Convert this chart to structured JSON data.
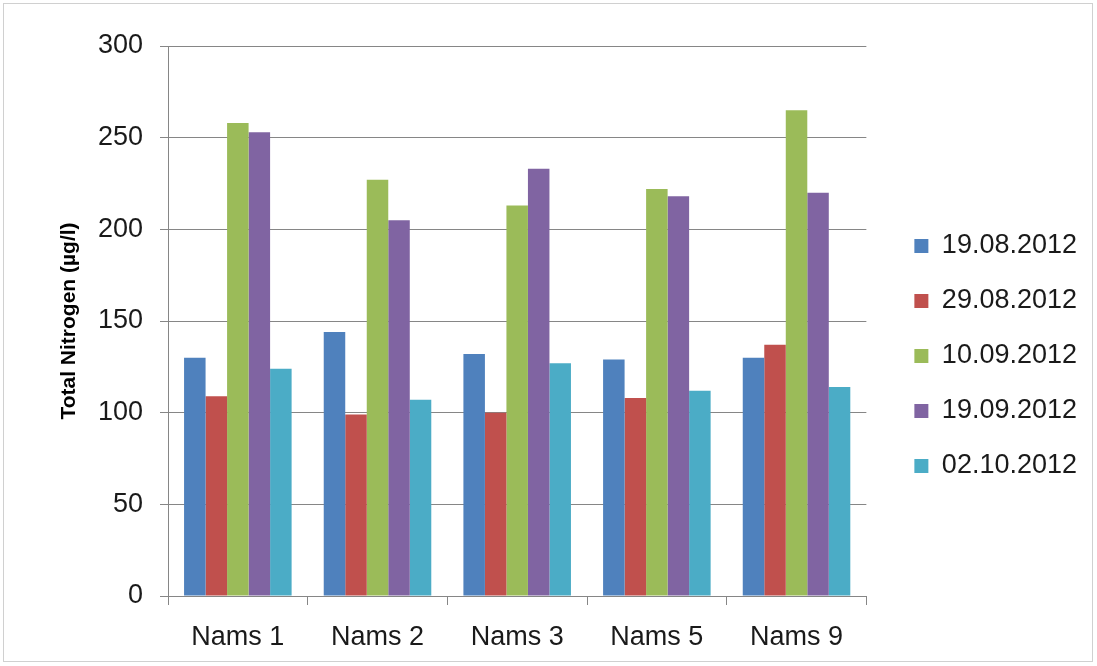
{
  "chart_data": {
    "type": "bar",
    "ylabel": "Total Nitrogen (µg/l)",
    "categories": [
      "Nams 1",
      "Nams 2",
      "Nams 3",
      "Nams 5",
      "Nams 9"
    ],
    "series": [
      {
        "name": "19.08.2012",
        "color": "#4f81bd",
        "values": [
          130,
          144,
          132,
          129,
          130
        ]
      },
      {
        "name": "29.08.2012",
        "color": "#c0504d",
        "values": [
          109,
          99,
          100,
          108,
          137
        ]
      },
      {
        "name": "10.09.2012",
        "color": "#9bbb59",
        "values": [
          258,
          227,
          213,
          222,
          265
        ]
      },
      {
        "name": "19.09.2012",
        "color": "#8064a2",
        "values": [
          253,
          205,
          233,
          218,
          220
        ]
      },
      {
        "name": "02.10.2012",
        "color": "#4bacc6",
        "values": [
          124,
          107,
          127,
          112,
          114
        ]
      }
    ],
    "ylim": [
      0,
      300
    ],
    "yticks": [
      0,
      50,
      100,
      150,
      200,
      250,
      300
    ],
    "grid": "y",
    "legend": "right"
  }
}
